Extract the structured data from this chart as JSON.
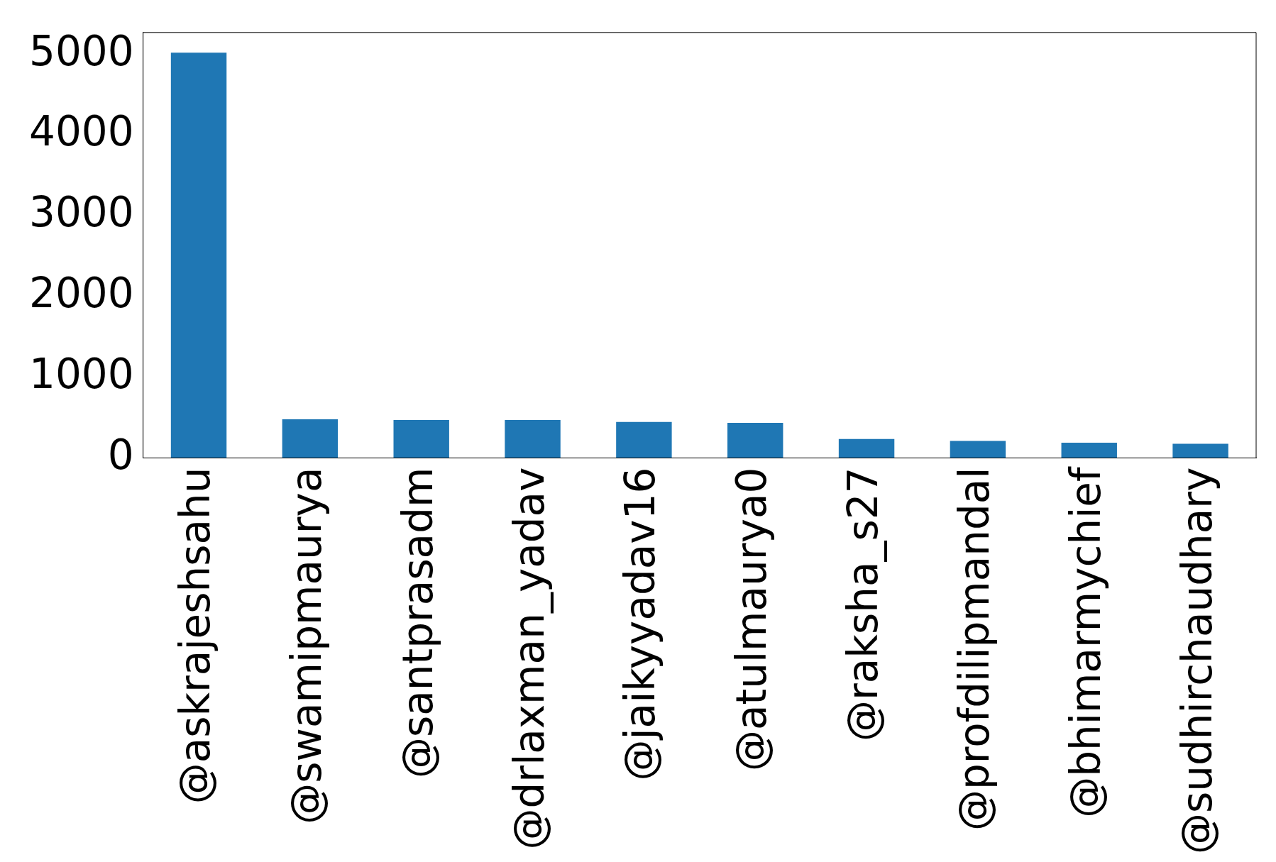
{
  "chart_data": {
    "type": "bar",
    "categories": [
      "@askrajeshsahu",
      "@swamipmaurya",
      "@santprasadm",
      "@drlaxman_yadav",
      "@jaikyyadav16",
      "@atulmaurya0",
      "@raksha_s27",
      "@profdilipmandal",
      "@bhimarmychief",
      "@sudhirchaudhary"
    ],
    "values": [
      5020,
      480,
      470,
      470,
      447,
      435,
      235,
      212,
      190,
      176
    ],
    "color": "#1f77b4",
    "ylim": [
      0,
      5270
    ],
    "yticks": [
      0,
      1000,
      2000,
      3000,
      4000,
      5000
    ],
    "grid": false,
    "legend": false
  }
}
